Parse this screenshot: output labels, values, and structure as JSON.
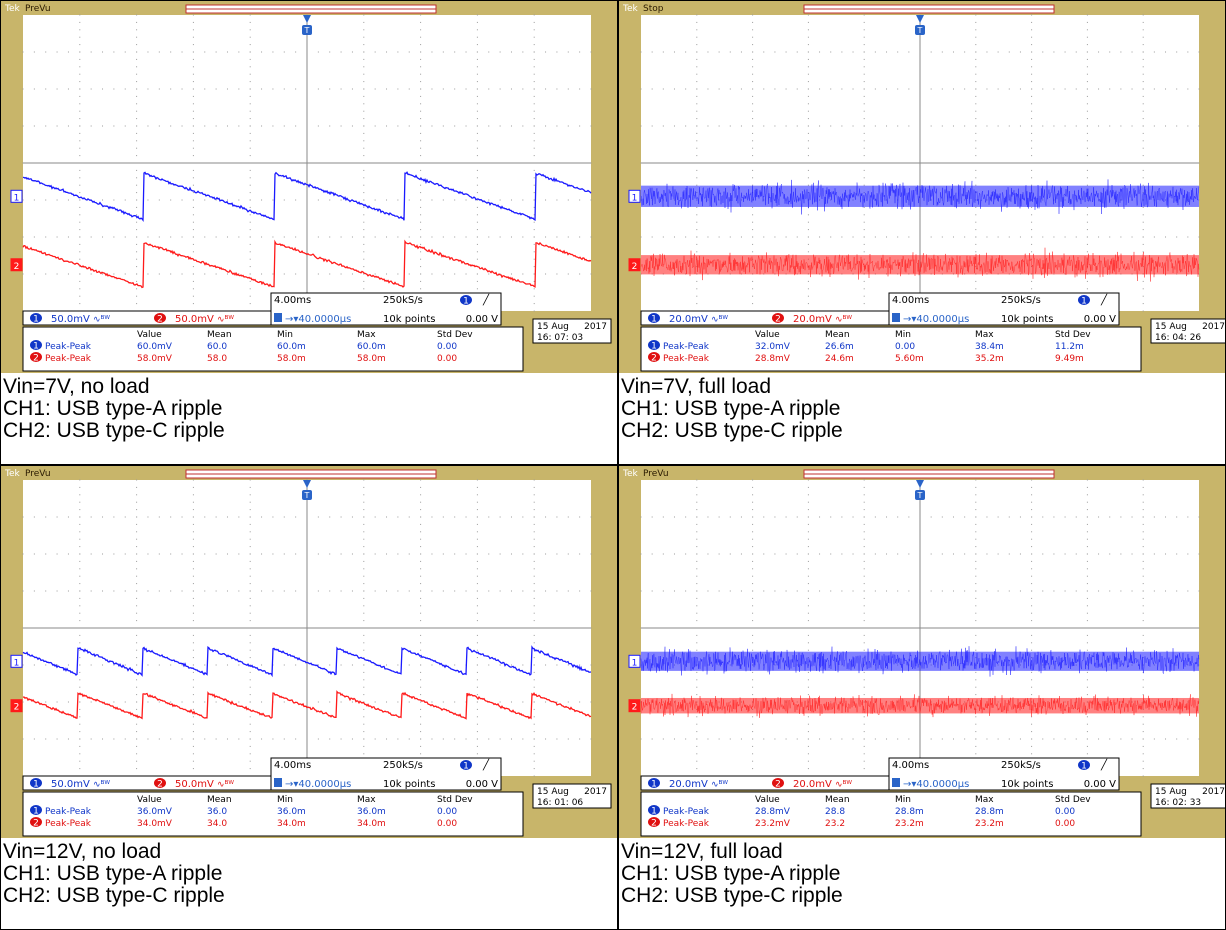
{
  "panels": [
    {
      "status": "PreVu",
      "ch1": {
        "scale": "50.0mV",
        "wave": "ramp",
        "period": 2.3,
        "p2p": 1.25,
        "level": 3.1
      },
      "ch2": {
        "scale": "50.0mV",
        "wave": "ramp",
        "period": 2.3,
        "p2p": 1.2,
        "level": 1.25
      },
      "timebase": "4.00ms",
      "sample_rate": "250kS/s",
      "delay": "40.0000µs",
      "points": "10k points",
      "trigger_level": "0.00 V",
      "meas": {
        "headers": [
          "Value",
          "Mean",
          "Min",
          "Max",
          "Std Dev"
        ],
        "rows": [
          {
            "label": "Peak-Peak",
            "values": [
              "60.0mV",
              "60.0",
              "60.0m",
              "60.0m",
              "0.00"
            ]
          },
          {
            "label": "Peak-Peak",
            "values": [
              "58.0mV",
              "58.0",
              "58.0m",
              "58.0m",
              "0.00"
            ]
          }
        ]
      },
      "date": "15 Aug",
      "year": "2017",
      "time": "16: 07: 03",
      "caption": [
        "Vin=7V, no load",
        "CH1: USB type-A ripple",
        "CH2: USB type-C ripple"
      ]
    },
    {
      "status": "Stop",
      "ch1": {
        "scale": "20.0mV",
        "wave": "noise",
        "p2p": 1.6,
        "level": 3.1
      },
      "ch2": {
        "scale": "20.0mV",
        "wave": "noise",
        "p2p": 1.45,
        "level": 1.25
      },
      "timebase": "4.00ms",
      "sample_rate": "250kS/s",
      "delay": "40.0000µs",
      "points": "10k points",
      "trigger_level": "0.00 V",
      "meas": {
        "headers": [
          "Value",
          "Mean",
          "Min",
          "Max",
          "Std Dev"
        ],
        "rows": [
          {
            "label": "Peak-Peak",
            "values": [
              "32.0mV",
              "26.6m",
              "0.00",
              "38.4m",
              "11.2m"
            ]
          },
          {
            "label": "Peak-Peak",
            "values": [
              "28.8mV",
              "24.6m",
              "5.60m",
              "35.2m",
              "9.49m"
            ]
          }
        ]
      },
      "date": "15 Aug",
      "year": "2017",
      "time": "16: 04: 26",
      "caption": [
        "Vin=7V, full load",
        "CH1: USB type-A ripple",
        "CH2: USB type-C ripple"
      ]
    },
    {
      "status": "PreVu",
      "ch1": {
        "scale": "50.0mV",
        "wave": "ramp",
        "period": 1.14,
        "p2p": 0.72,
        "level": 3.1
      },
      "ch2": {
        "scale": "50.0mV",
        "wave": "ramp",
        "period": 1.14,
        "p2p": 0.68,
        "level": 1.9
      },
      "timebase": "4.00ms",
      "sample_rate": "250kS/s",
      "delay": "40.0000µs",
      "points": "10k points",
      "trigger_level": "0.00 V",
      "meas": {
        "headers": [
          "Value",
          "Mean",
          "Min",
          "Max",
          "Std Dev"
        ],
        "rows": [
          {
            "label": "Peak-Peak",
            "values": [
              "36.0mV",
              "36.0",
              "36.0m",
              "36.0m",
              "0.00"
            ]
          },
          {
            "label": "Peak-Peak",
            "values": [
              "34.0mV",
              "34.0",
              "34.0m",
              "34.0m",
              "0.00"
            ]
          }
        ]
      },
      "date": "15 Aug",
      "year": "2017",
      "time": "16: 01: 06",
      "caption": [
        "Vin=12V, no load",
        "CH1: USB type-A ripple",
        "CH2: USB type-C ripple"
      ]
    },
    {
      "status": "PreVu",
      "ch1": {
        "scale": "20.0mV",
        "wave": "noise",
        "p2p": 1.44,
        "level": 3.1
      },
      "ch2": {
        "scale": "20.0mV",
        "wave": "noise",
        "p2p": 1.16,
        "level": 1.9
      },
      "timebase": "4.00ms",
      "sample_rate": "250kS/s",
      "delay": "40.0000µs",
      "points": "10k points",
      "trigger_level": "0.00 V",
      "meas": {
        "headers": [
          "Value",
          "Mean",
          "Min",
          "Max",
          "Std Dev"
        ],
        "rows": [
          {
            "label": "Peak-Peak",
            "values": [
              "28.8mV",
              "28.8",
              "28.8m",
              "28.8m",
              "0.00"
            ]
          },
          {
            "label": "Peak-Peak",
            "values": [
              "23.2mV",
              "23.2",
              "23.2m",
              "23.2m",
              "0.00"
            ]
          }
        ]
      },
      "date": "15 Aug",
      "year": "2017",
      "time": "16: 02: 33",
      "caption": [
        "Vin=12V, full load",
        "CH1: USB type-A ripple",
        "CH2: USB type-C ripple"
      ]
    }
  ],
  "chart_data": [
    {
      "type": "line",
      "series": [
        {
          "name": "CH1",
          "peak_to_peak_mV": 60.0
        },
        {
          "name": "CH2",
          "peak_to_peak_mV": 58.0
        }
      ]
    },
    {
      "type": "line",
      "series": [
        {
          "name": "CH1",
          "peak_to_peak_mV": 32.0
        },
        {
          "name": "CH2",
          "peak_to_peak_mV": 28.8
        }
      ]
    },
    {
      "type": "line",
      "series": [
        {
          "name": "CH1",
          "peak_to_peak_mV": 36.0
        },
        {
          "name": "CH2",
          "peak_to_peak_mV": 34.0
        }
      ]
    },
    {
      "type": "line",
      "series": [
        {
          "name": "CH1",
          "peak_to_peak_mV": 28.8
        },
        {
          "name": "CH2",
          "peak_to_peak_mV": 23.2
        }
      ]
    }
  ],
  "colors": {
    "ch1": "#1a1aff",
    "ch2": "#ff1a1a",
    "bezel": "#c8b56a",
    "badge1": "#1036c8",
    "badge2": "#e01010"
  }
}
